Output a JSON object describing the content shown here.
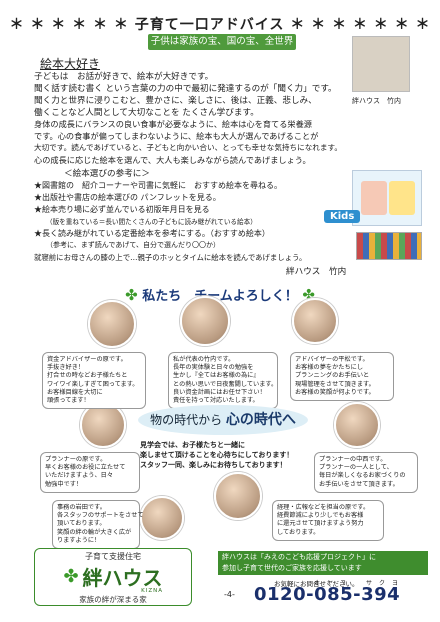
{
  "header": {
    "title": "＊ ＊ ＊ ＊ ＊ ＊ 子育て一口アドバイス ＊ ＊ ＊ ＊ ＊ ＊ ＊",
    "banner": "子供は家族の宝、国の宝、全世界の宝"
  },
  "article": {
    "title": "絵本大好き",
    "author_caption": "絆ハウス　竹内",
    "lines": [
      "子どもは　お話が好きで、絵本が大好きです。",
      "聞く話す読む書く という言葉の力の中で最初に発達するのが「聞く力」です。",
      "聞く力と世界に浸りこむと、豊かさに、楽しさに、後は、正義、悲しみ、",
      "働くことなど人間として大切なことを たくさん学びます。",
      "身体の成長にバランスの良い食事が必要なように、絵本は心を育てる栄養源",
      "です。心の食事が偏ってしまわないように、絵本も大人が選んであげることが",
      "大切です。読んであげていると、子どもと向かい合い、とっても幸せな気持ちになれます。",
      "心の成長に応じた絵本を選んで、大人も楽しみながら読んであげましょう。",
      "＜絵本選びの参考に＞",
      "★図書館の　紹介コーナーや司書に気軽に　おすすめ絵本を尋ねる。",
      "★出版社や書店の絵本選びの パンフレットを見る。",
      "★絵本売り場に必ず並んでいる初版年月日を見る",
      "（版を重ねている＝長い間たくさんの子どもに読み継がれている絵本）",
      "★長く読み継がれている定番絵本を参考にする。（おすすめ絵本）",
      "（参考に、まず読んであげて、自分で選んだり〇〇か）",
      "就寝前にお母さんの膝の上で…親子のホッとタイムに絵本を読んであげましょう。",
      "絆ハウス　竹内"
    ]
  },
  "illustration": {
    "label": "Kids"
  },
  "team": {
    "title": "私たち　チームよろしく！",
    "members": [
      {
        "lines": [
          "資金アドバイザーの原です。",
          "手抜き好き！",
          "打合せの時などお子様たちと",
          "ワイワイ楽しすぎて困ってます。",
          "お客様目線を大切に",
          "頑張ってます！"
        ]
      },
      {
        "lines": [
          "私が代表の竹内です。",
          "長年の実体験と日々の勉強を",
          "生かし『全てはお客様の為に』",
          "との熱い思いで日夜奮闘しています。",
          "良い資金計画にはお任せ下さい！",
          "責任を持って対応いたします。"
        ]
      },
      {
        "lines": [
          "アドバイザーの平松です。",
          "お客様の夢をかたちにし",
          "プランニングのお手伝いと",
          "現場管理をさせて頂きます。",
          "お客様の笑顔が何よりです。"
        ]
      },
      {
        "lines": [
          "プランナーの原です。",
          "早くお客様のお役に立たせて",
          "いただけますよう、日々",
          "勉強中です！"
        ]
      },
      {
        "lines": [
          "プランナーの中西です。",
          "プランナーの一人として、",
          "毎日が楽しくなるお家づくりの",
          "お手伝いをさせて頂きます。"
        ]
      },
      {
        "lines": [
          "事務の岩田です。",
          "各スタッフのサポートをさせて",
          "頂いております。",
          "笑顔の絆の輪が大きく広が",
          "りますように！"
        ]
      },
      {
        "lines": [
          "経理・広報などを担当の原です。",
          "経費節減により少しでもお客様",
          "に還元させて頂けますよう努力",
          "しております。"
        ]
      }
    ]
  },
  "era": {
    "prefix": "物の時代から",
    "emph": "心の時代へ"
  },
  "visit": [
    "見学会では、お子様たちと一緒に",
    "楽しませて頂けることを心待ちにしております！",
    "スタッフ一同、楽しみにお待ちしております！"
  ],
  "footer": {
    "logo_sub": "子育て支援住宅",
    "logo_main": "絆ハウス",
    "logo_en": "KIZNA",
    "logo_tag": "家族の絆が深まる家",
    "project_lines": [
      "絆ハウスは「みえのこども応援プロジェクト」に",
      "参加し子育て世代のご家族を応援しています"
    ],
    "contact": "お気軽にお問合せください。",
    "phone": "0120-085-394",
    "phone_ruby": "オヤコ　サクヨ",
    "page": "-4-"
  },
  "colors": {
    "green": "#3f8d2e",
    "navy": "#1a2f6b",
    "banner": "#4f9a3c"
  }
}
